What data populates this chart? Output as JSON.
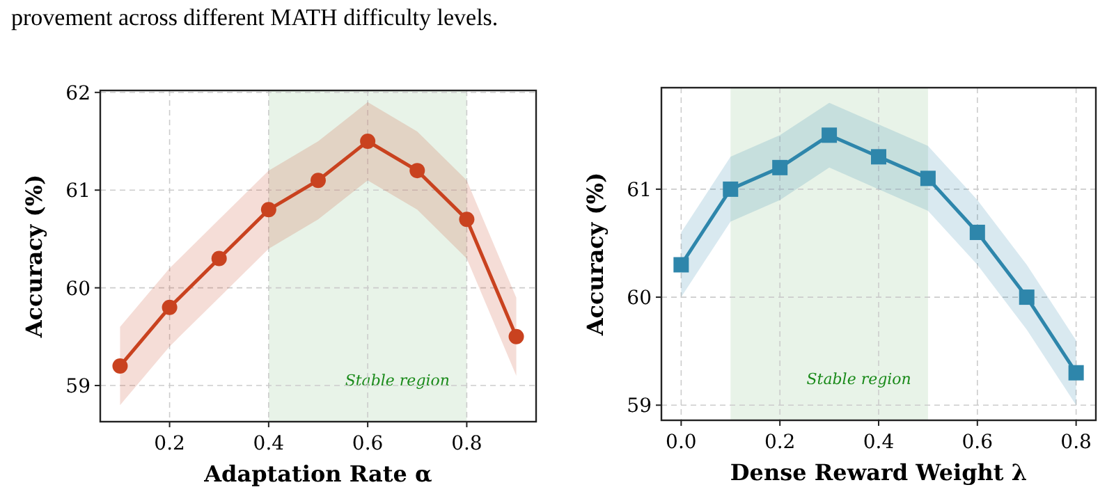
{
  "chart_data": [
    {
      "type": "line",
      "xlabel": "Adaptation Rate α",
      "ylabel": "Accuracy (%)",
      "annotations": [
        "provement across different MATH difficulty levels."
      ],
      "x": [
        0.1,
        0.2,
        0.3,
        0.4,
        0.5,
        0.6,
        0.7,
        0.8,
        0.9
      ],
      "series": [
        {
          "color": "#c9421f",
          "values": [
            59.2,
            59.8,
            60.3,
            60.8,
            61.1,
            61.5,
            61.2,
            60.7,
            59.5
          ],
          "lower": [
            58.8,
            59.4,
            59.9,
            60.4,
            60.7,
            61.1,
            60.8,
            60.3,
            59.1
          ],
          "upper": [
            59.6,
            60.2,
            60.7,
            61.2,
            61.5,
            61.9,
            61.6,
            61.1,
            59.9
          ]
        }
      ],
      "xlim": [
        0.06,
        0.94
      ],
      "ylim": [
        58.63,
        62.02
      ],
      "xticks": [
        0.2,
        0.4,
        0.6,
        0.8
      ],
      "yticks": [
        59,
        60,
        61,
        62
      ],
      "bands": [
        {
          "axis": "x",
          "from": 0.4,
          "to": 0.8,
          "label": "Stable region",
          "color": "#e8f3e8"
        }
      ],
      "grid": true,
      "marker": "circle",
      "line_style": "solid"
    },
    {
      "type": "line",
      "xlabel": "Dense Reward Weight λ",
      "ylabel": "Accuracy (%)",
      "x": [
        0.0,
        0.1,
        0.2,
        0.3,
        0.4,
        0.5,
        0.6,
        0.7,
        0.8
      ],
      "series": [
        {
          "color": "#2e86ab",
          "values": [
            60.3,
            61.0,
            61.2,
            61.5,
            61.3,
            61.1,
            60.6,
            60.0,
            59.3
          ],
          "lower": [
            60.0,
            60.7,
            60.9,
            61.2,
            61.0,
            60.8,
            60.3,
            59.7,
            59.0
          ],
          "upper": [
            60.6,
            61.3,
            61.5,
            61.8,
            61.6,
            61.4,
            60.9,
            60.3,
            59.6
          ]
        }
      ],
      "xlim": [
        -0.04,
        0.84
      ],
      "ylim": [
        58.86,
        61.94
      ],
      "xticks": [
        {
          "value": 0,
          "label": "0.0"
        },
        0.2,
        0.4,
        0.6,
        0.8
      ],
      "yticks": [
        59,
        60,
        61
      ],
      "bands": [
        {
          "axis": "x",
          "from": 0.1,
          "to": 0.5,
          "label": "Stable region",
          "color": "#e8f3e8"
        }
      ],
      "grid": true,
      "marker": "square",
      "line_style": "solid"
    }
  ]
}
